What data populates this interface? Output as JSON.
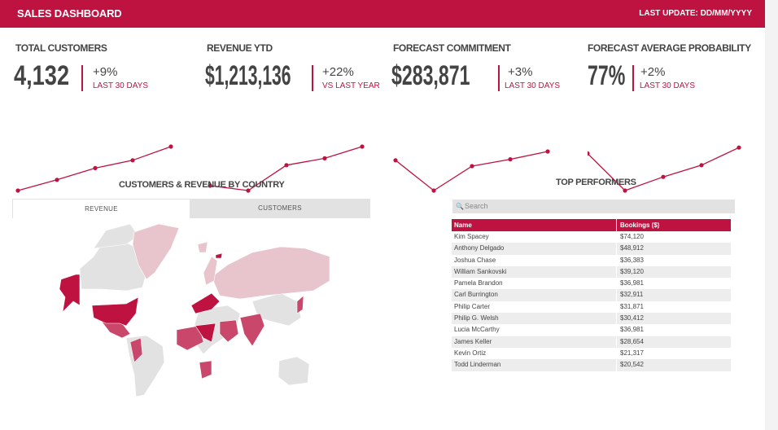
{
  "header": {
    "title": "SALES DASHBOARD",
    "last_update": "LAST UPDATE: DD/MM/YYYY"
  },
  "accent_color": "#be1340",
  "kpis": [
    {
      "title": "TOTAL CUSTOMERS",
      "value": "4,132",
      "change": "+9%",
      "period": "LAST 30 DAYS",
      "trend": [
        1,
        2.1,
        3.3,
        4.1,
        5.5
      ]
    },
    {
      "title": "REVENUE YTD",
      "value": "$1,213,136",
      "change": "+22%",
      "period": "VS LAST YEAR",
      "trend": [
        1.5,
        1,
        3.6,
        4.3,
        5.5
      ]
    },
    {
      "title": "FORECAST COMMITMENT",
      "value": "$283,871",
      "change": "+3%",
      "period": "LAST 30 DAYS",
      "trend": [
        4.1,
        1,
        3.5,
        4.2,
        5
      ]
    },
    {
      "title": "FORECAST AVERAGE PROBABILITY",
      "value": "77%",
      "change": "+2%",
      "period": "LAST 30 DAYS",
      "trend": [
        4.8,
        1,
        2.4,
        3.6,
        5.4
      ]
    }
  ],
  "map_section": {
    "title": "CUSTOMERS & REVENUE BY COUNTRY",
    "tabs": [
      {
        "label": "REVENUE",
        "active": true
      },
      {
        "label": "CUSTOMERS",
        "active": false
      }
    ],
    "colors": {
      "high": "#be1340",
      "mid": "#c9476a",
      "low": "#e8c4cc",
      "none": "#e2e2e2"
    }
  },
  "performers": {
    "title": "TOP PERFORMERS",
    "search_placeholder": "Search",
    "columns": [
      "Name",
      "Bookings ($)"
    ],
    "rows": [
      [
        "Kim Spacey",
        "$74,120"
      ],
      [
        "Anthony Delgado",
        "$48,912"
      ],
      [
        "Joshua Chase",
        "$36,383"
      ],
      [
        "William Sankovski",
        "$39,120"
      ],
      [
        "Pamela Brandon",
        "$36,981"
      ],
      [
        "Carl Burrington",
        "$32,911"
      ],
      [
        "Philip Carter",
        "$31,871"
      ],
      [
        "Philip G. Welsh",
        "$30,412"
      ],
      [
        "Lucia McCarthy",
        "$36,981"
      ],
      [
        "James Keller",
        "$28,654"
      ],
      [
        "Kevin Ortiz",
        "$21,317"
      ],
      [
        "Todd Linderman",
        "$20,542"
      ]
    ]
  }
}
